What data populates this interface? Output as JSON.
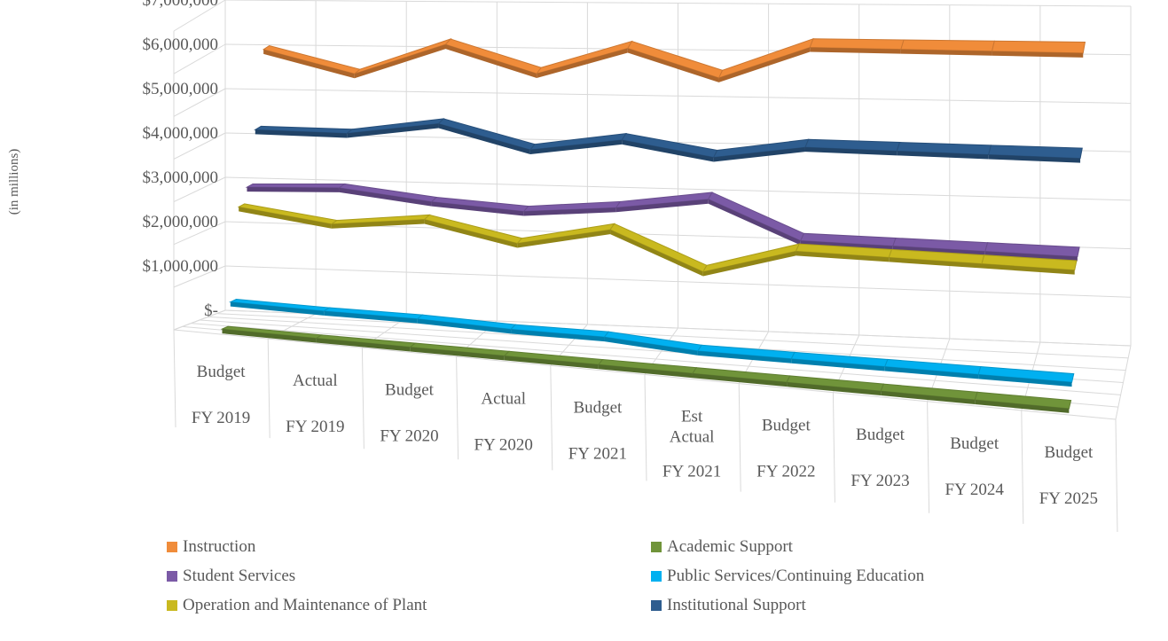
{
  "chart_data": {
    "type": "line",
    "subtype": "3d-line",
    "title": "",
    "ylabel": "(in millions)",
    "xlabel": "",
    "ylim": [
      0,
      7000000
    ],
    "y_ticks": [
      "$-",
      "$1,000,000",
      "$2,000,000",
      "$3,000,000",
      "$4,000,000",
      "$5,000,000",
      "$6,000,000",
      "$7,000,000"
    ],
    "categories": [
      {
        "top": "Budget",
        "bottom": "FY 2019"
      },
      {
        "top": "Actual",
        "bottom": "FY 2019"
      },
      {
        "top": "Budget",
        "bottom": "FY 2020"
      },
      {
        "top": "Actual",
        "bottom": "FY 2020"
      },
      {
        "top": "Budget",
        "bottom": "FY 2021"
      },
      {
        "top": "Est Actual",
        "bottom": "FY 2021"
      },
      {
        "top": "Budget",
        "bottom": "FY 2022"
      },
      {
        "top": "Budget",
        "bottom": "FY 2023"
      },
      {
        "top": "Budget",
        "bottom": "FY 2024"
      },
      {
        "top": "Budget",
        "bottom": "FY 2025"
      }
    ],
    "series": [
      {
        "name": "Academic Support",
        "color": "#70943a",
        "values": [
          110000,
          100000,
          100000,
          100000,
          100000,
          100000,
          100000,
          100000,
          100000,
          100000
        ]
      },
      {
        "name": "Public Services/Continuing Education",
        "color": "#00b0f0",
        "values": [
          650000,
          620000,
          620000,
          560000,
          560000,
          420000,
          420000,
          420000,
          420000,
          420000
        ]
      },
      {
        "name": "Operation and Maintenance of Plant",
        "color": "#c9b91f",
        "values": [
          2750000,
          2500000,
          2750000,
          2350000,
          2800000,
          2000000,
          2600000,
          2600000,
          2600000,
          2600000
        ]
      },
      {
        "name": "Student Services",
        "color": "#7b5aa6",
        "values": [
          3100000,
          3200000,
          3000000,
          2900000,
          3100000,
          3400000,
          2600000,
          2600000,
          2600000,
          2600000
        ]
      },
      {
        "name": "Institutional Support",
        "color": "#2e5d8f",
        "values": [
          4300000,
          4300000,
          4600000,
          4100000,
          4400000,
          4100000,
          4400000,
          4400000,
          4400000,
          4400000
        ]
      },
      {
        "name": "Instruction",
        "color": "#f08c3a",
        "values": [
          6000000,
          5500000,
          6200000,
          5600000,
          6200000,
          5600000,
          6300000,
          6300000,
          6300000,
          6300000
        ]
      }
    ],
    "legend": {
      "position": "bottom",
      "items": [
        {
          "name": "Instruction",
          "color": "#f08c3a"
        },
        {
          "name": "Academic Support",
          "color": "#70943a"
        },
        {
          "name": "Student Services",
          "color": "#7b5aa6"
        },
        {
          "name": "Public Services/Continuing Education",
          "color": "#00b0f0"
        },
        {
          "name": "Operation and Maintenance of Plant",
          "color": "#c9b91f"
        },
        {
          "name": "Institutional Support",
          "color": "#2e5d8f"
        }
      ]
    },
    "grid": true
  }
}
